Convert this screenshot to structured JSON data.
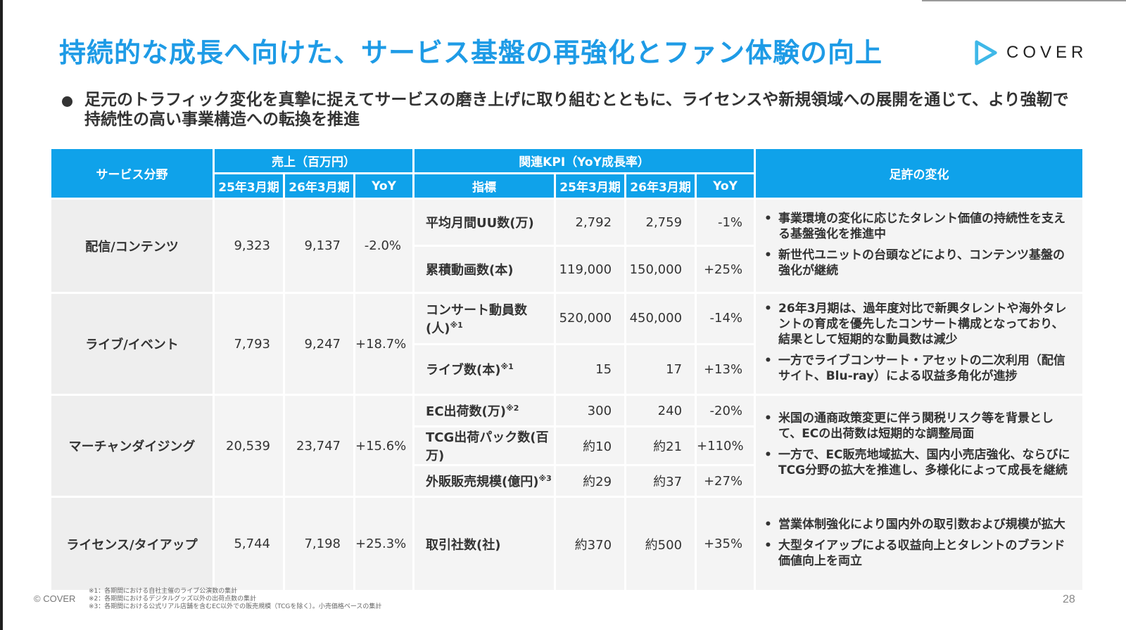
{
  "slide": {
    "title": "持続的な成長へ向けた、サービス基盤の再強化とファン体験の向上",
    "logo_text": "COVER",
    "bullet": "足元のトラフィック変化を真摯に捉えてサービスの磨き上げに取り組むとともに、ライセンスや新規領域への展開を通じて、より強靭で持続性の高い事業構造への転換を推進",
    "accent_color": "#1e9be6"
  },
  "table": {
    "headers": {
      "service": "サービス分野",
      "sales_group": "売上（百万円）",
      "kpi_group": "関連KPI（YoY成長率）",
      "changes": "足許の変化",
      "fy25": "25年3月期",
      "fy26": "26年3月期",
      "yoy": "YoY",
      "indicator": "指標",
      "kpi_fy25": "25年3月期",
      "kpi_fy26": "26年3月期",
      "kpi_yoy": "YoY"
    },
    "rows": [
      {
        "service": "配信/コンテンツ",
        "sales_fy25": "9,323",
        "sales_fy26": "9,137",
        "sales_yoy": "-2.0%",
        "kpis": [
          {
            "name": "平均月間UU数(万)",
            "note_mark": "",
            "fy25": "2,792",
            "fy26": "2,759",
            "yoy": "-1%"
          },
          {
            "name": "累積動画数(本)",
            "note_mark": "",
            "fy25": "119,000",
            "fy26": "150,000",
            "yoy": "+25%"
          }
        ],
        "notes": [
          "事業環境の変化に応じたタレント価値の持続性を支える基盤強化を推進中",
          "新世代ユニットの台頭などにより、コンテンツ基盤の強化が継続"
        ]
      },
      {
        "service": "ライブ/イベント",
        "sales_fy25": "7,793",
        "sales_fy26": "9,247",
        "sales_yoy": "+18.7%",
        "kpis": [
          {
            "name": "コンサート動員数(人)",
            "note_mark": "※1",
            "fy25": "520,000",
            "fy26": "450,000",
            "yoy": "-14%"
          },
          {
            "name": "ライブ数(本)",
            "note_mark": "※1",
            "fy25": "15",
            "fy26": "17",
            "yoy": "+13%"
          }
        ],
        "notes": [
          "26年3月期は、過年度対比で新興タレントや海外タレントの育成を優先したコンサート構成となっており、結果として短期的な動員数は減少",
          "一方でライブコンサート・アセットの二次利用（配信サイト、Blu-ray）による収益多角化が進捗"
        ]
      },
      {
        "service": "マーチャンダイジング",
        "sales_fy25": "20,539",
        "sales_fy26": "23,747",
        "sales_yoy": "+15.6%",
        "kpis": [
          {
            "name": "EC出荷数(万)",
            "note_mark": "※2",
            "fy25": "300",
            "fy26": "240",
            "yoy": "-20%"
          },
          {
            "name": "TCG出荷パック数(百万)",
            "note_mark": "",
            "fy25": "約10",
            "fy26": "約21",
            "yoy": "+110%"
          },
          {
            "name": "外販販売規模(億円)",
            "note_mark": "※3",
            "fy25": "約29",
            "fy26": "約37",
            "yoy": "+27%"
          }
        ],
        "notes": [
          "米国の通商政策変更に伴う関税リスク等を背景として、ECの出荷数は短期的な調整局面",
          "一方で、EC販売地域拡大、国内小売店強化、ならびにTCG分野の拡大を推進し、多様化によって成長を継続"
        ]
      },
      {
        "service": "ライセンス/タイアップ",
        "sales_fy25": "5,744",
        "sales_fy26": "7,198",
        "sales_yoy": "+25.3%",
        "kpis": [
          {
            "name": "取引社数(社)",
            "note_mark": "",
            "fy25": "約370",
            "fy26": "約500",
            "yoy": "+35%"
          }
        ],
        "notes": [
          "営業体制強化により国内外の取引数および規模が拡大",
          "大型タイアップによる収益向上とタレントのブランド価値向上を両立"
        ]
      }
    ]
  },
  "footer": {
    "copyright": "© COVER",
    "footnotes": [
      "※1：各期間における自社主催のライブ公演数の集計",
      "※2：各期間におけるデジタルグッズ以外の出荷点数の集計",
      "※3：各期間における公式リアル店舗を含むEC以外での販売規模（TCGを除く）。小売価格ベースの集計"
    ],
    "page_number": "28"
  }
}
